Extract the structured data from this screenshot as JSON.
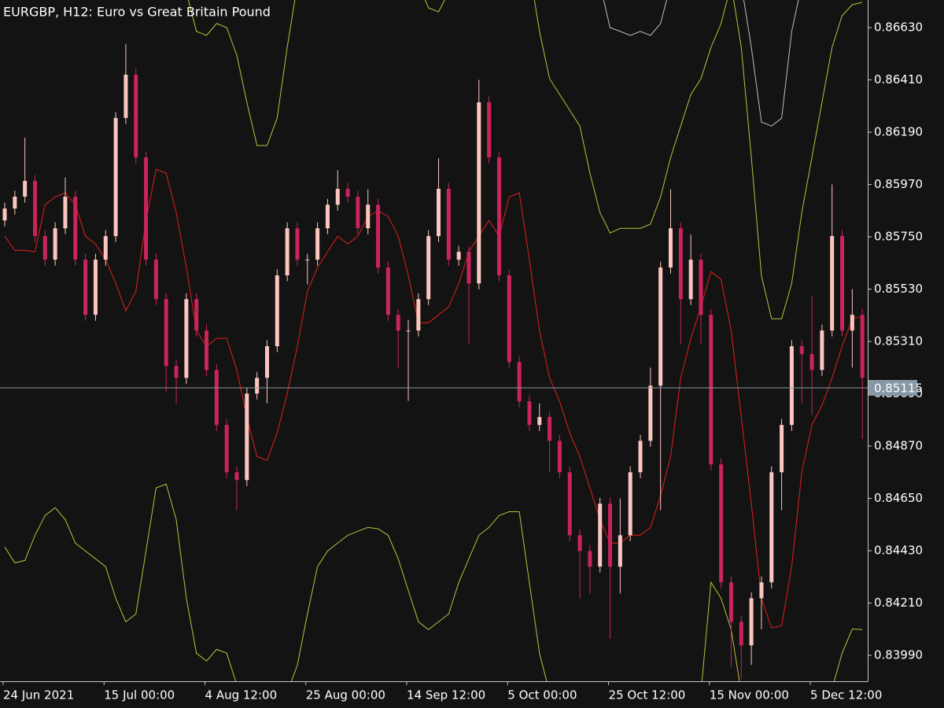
{
  "chart_data": {
    "type": "candlestick",
    "title": "EURGBP, H12:  Euro vs Great Britain Pound",
    "categories": [
      "24 Jun 2021",
      null,
      null,
      null,
      null,
      null,
      null,
      null,
      null,
      null,
      "15 Jul 00:00",
      null,
      null,
      null,
      null,
      null,
      null,
      null,
      null,
      null,
      "4 Aug 12:00",
      null,
      null,
      null,
      null,
      null,
      null,
      null,
      null,
      null,
      "25 Aug 00:00",
      null,
      null,
      null,
      null,
      null,
      null,
      null,
      null,
      null,
      "14 Sep 12:00",
      null,
      null,
      null,
      null,
      null,
      null,
      null,
      null,
      null,
      "5 Oct 00:00",
      null,
      null,
      null,
      null,
      null,
      null,
      null,
      null,
      null,
      "25 Oct 12:00",
      null,
      null,
      null,
      null,
      null,
      null,
      null,
      null,
      null,
      "15 Nov 00:00",
      null,
      null,
      null,
      null,
      null,
      null,
      null,
      null,
      null,
      "5 Dec 12:00",
      null,
      null,
      null,
      null,
      null
    ],
    "open": [
      0.85819,
      0.85869,
      0.85919,
      0.85985,
      0.85753,
      0.85654,
      0.85786,
      0.85919,
      0.85654,
      0.85422,
      0.85654,
      0.85753,
      0.8625,
      0.86432,
      0.86084,
      0.85654,
      0.85488,
      0.85207,
      0.85157,
      0.85488,
      0.85356,
      0.8519,
      0.84959,
      0.8476,
      0.84727,
      0.85091,
      0.85157,
      0.8529,
      0.85588,
      0.85786,
      0.85654,
      0.85654,
      0.85786,
      0.85885,
      0.85952,
      0.85919,
      0.85786,
      0.85885,
      0.85621,
      0.85422,
      0.85356,
      0.85356,
      0.85488,
      0.85753,
      0.85952,
      0.85654,
      0.85687,
      0.85554,
      0.86316,
      0.86084,
      0.85588,
      0.85223,
      0.85058,
      0.84959,
      0.84992,
      0.84892,
      0.8476,
      0.84495,
      0.84429,
      0.84363,
      0.84628,
      0.84363,
      0.84495,
      0.8476,
      0.84892,
      0.85124,
      0.85621,
      0.85786,
      0.85488,
      0.85654,
      0.85422,
      0.84793,
      0.84297,
      0.84131,
      0.84032,
      0.8423,
      0.84297,
      0.8476,
      0.84959,
      0.8529,
      0.85257,
      0.8519,
      0.85356,
      0.85753,
      0.85356,
      0.85422
    ],
    "high": [
      0.85894,
      0.85944,
      0.86167,
      0.8601,
      0.85778,
      0.85811,
      0.86,
      0.85944,
      0.85679,
      0.85679,
      0.85778,
      0.86275,
      0.8656,
      0.86457,
      0.86109,
      0.85679,
      0.85513,
      0.85232,
      0.85513,
      0.85513,
      0.85381,
      0.85215,
      0.84984,
      0.84785,
      0.85116,
      0.85182,
      0.85315,
      0.85613,
      0.85811,
      0.85811,
      0.85679,
      0.85811,
      0.8591,
      0.8603,
      0.85977,
      0.85944,
      0.8595,
      0.8591,
      0.85646,
      0.85447,
      0.854,
      0.85513,
      0.85778,
      0.8608,
      0.85977,
      0.85712,
      0.85712,
      0.8641,
      0.86341,
      0.86109,
      0.85613,
      0.85248,
      0.85083,
      0.8505,
      0.85017,
      0.84917,
      0.84785,
      0.8452,
      0.84454,
      0.84653,
      0.84653,
      0.8465,
      0.84785,
      0.84917,
      0.852,
      0.85646,
      0.8595,
      0.85811,
      0.8576,
      0.85679,
      0.85447,
      0.84818,
      0.84322,
      0.84156,
      0.84255,
      0.84322,
      0.84785,
      0.84984,
      0.85315,
      0.85315,
      0.855,
      0.85381,
      0.8597,
      0.85778,
      0.8553,
      0.85447
    ],
    "low": [
      0.85794,
      0.85844,
      0.85894,
      0.85728,
      0.85629,
      0.85629,
      0.85761,
      0.85629,
      0.85397,
      0.85397,
      0.85629,
      0.85728,
      0.86225,
      0.86059,
      0.85629,
      0.85463,
      0.851,
      0.8505,
      0.85132,
      0.85331,
      0.85165,
      0.84934,
      0.84735,
      0.846,
      0.84702,
      0.85066,
      0.8505,
      0.85265,
      0.85563,
      0.85629,
      0.8555,
      0.85629,
      0.85761,
      0.8586,
      0.85894,
      0.85761,
      0.85761,
      0.85596,
      0.85397,
      0.852,
      0.8506,
      0.85331,
      0.85463,
      0.85728,
      0.85629,
      0.85629,
      0.853,
      0.85529,
      0.86059,
      0.85563,
      0.85198,
      0.85033,
      0.84934,
      0.84934,
      0.8476,
      0.84735,
      0.8447,
      0.8423,
      0.8425,
      0.84338,
      0.8406,
      0.8425,
      0.8447,
      0.84735,
      0.84867,
      0.846,
      0.85596,
      0.853,
      0.85463,
      0.853,
      0.84768,
      0.84272,
      0.8394,
      0.8389,
      0.8395,
      0.841,
      0.84272,
      0.846,
      0.84934,
      0.8505,
      0.85,
      0.85165,
      0.85331,
      0.85331,
      0.852,
      0.849
    ],
    "close": [
      0.85869,
      0.85919,
      0.85985,
      0.85753,
      0.85654,
      0.85786,
      0.85919,
      0.85654,
      0.85422,
      0.85654,
      0.85753,
      0.8625,
      0.86432,
      0.86084,
      0.85654,
      0.85488,
      0.85207,
      0.85157,
      0.85488,
      0.85356,
      0.8519,
      0.84959,
      0.8476,
      0.84727,
      0.85091,
      0.85157,
      0.8529,
      0.85588,
      0.85786,
      0.85654,
      0.85654,
      0.85786,
      0.85885,
      0.85952,
      0.85919,
      0.85786,
      0.85885,
      0.85621,
      0.85422,
      0.85356,
      0.85356,
      0.85488,
      0.85753,
      0.85952,
      0.85654,
      0.85687,
      0.85554,
      0.86316,
      0.86084,
      0.85588,
      0.85223,
      0.85058,
      0.84959,
      0.84992,
      0.84892,
      0.8476,
      0.84495,
      0.84429,
      0.84363,
      0.84628,
      0.84363,
      0.84495,
      0.8476,
      0.84892,
      0.85124,
      0.85621,
      0.85786,
      0.85488,
      0.85654,
      0.85422,
      0.84793,
      0.84297,
      0.84131,
      0.84032,
      0.8423,
      0.84297,
      0.8476,
      0.84959,
      0.8529,
      0.85257,
      0.8519,
      0.85356,
      0.85753,
      0.85356,
      0.85422,
      0.85157
    ],
    "up_color": "#fcc6c0",
    "down_color": "#c9245c",
    "series": [
      {
        "color": "#e0201c",
        "values": [
          0.85753,
          0.85693,
          0.85693,
          0.85687,
          0.85885,
          0.85918,
          0.85935,
          0.85885,
          0.85753,
          0.8572,
          0.85654,
          0.85554,
          0.85439,
          0.85521,
          0.85819,
          0.86034,
          0.86018,
          0.85852,
          0.85621,
          0.85356,
          0.8529,
          0.85323,
          0.85323,
          0.8519,
          0.84992,
          0.84826,
          0.8481,
          0.84925,
          0.85091,
          0.8529,
          0.85521,
          0.85621,
          0.85687,
          0.85753,
          0.8572,
          0.85753,
          0.85836,
          0.85859,
          0.85836,
          0.85753,
          0.85587,
          0.85389,
          0.85389,
          0.85422,
          0.85455,
          0.85554,
          0.85687,
          0.85753,
          0.85819,
          0.85753,
          0.85918,
          0.85935,
          0.85654,
          0.85356,
          0.85157,
          0.85058,
          0.84925,
          0.84826,
          0.84694,
          0.84561,
          0.84462,
          0.84462,
          0.84495,
          0.84495,
          0.84528,
          0.84661,
          0.84826,
          0.85157,
          0.85323,
          0.85455,
          0.85604,
          0.85571,
          0.85356,
          0.84992,
          0.84628,
          0.8423,
          0.84105,
          0.84115,
          0.84363,
          0.8476,
          0.84959,
          0.85041,
          0.85157,
          0.8529,
          0.85405,
          0.85415
        ]
      },
      {
        "color": "#b5c43c",
        "values": [
          null,
          null,
          null,
          null,
          null,
          null,
          null,
          null,
          null,
          null,
          null,
          null,
          null,
          null,
          null,
          null,
          null,
          null,
          0.86779,
          0.86614,
          0.86597,
          0.86647,
          0.8663,
          0.86514,
          0.86316,
          0.86134,
          0.86134,
          0.86249,
          0.86547,
          0.86812,
          null,
          null,
          null,
          null,
          null,
          null,
          null,
          null,
          null,
          null,
          null,
          0.86812,
          0.86713,
          0.86696,
          0.86779,
          null,
          null,
          null,
          null,
          null,
          null,
          null,
          0.86878,
          0.86614,
          0.86415,
          0.86349,
          0.86283,
          0.86216,
          0.86018,
          0.85852,
          0.85766,
          0.85786,
          0.85786,
          0.85786,
          0.85803,
          0.85918,
          0.86084,
          0.86216,
          0.86349,
          0.86415,
          0.86547,
          0.86647,
          0.86812,
          0.86547,
          0.86084,
          0.85587,
          0.85405,
          0.85405,
          0.85554,
          0.85852,
          0.86084,
          0.86316,
          0.86547,
          0.8668,
          0.86726,
          0.86736
        ]
      },
      {
        "color": "#b5c43c",
        "values": [
          0.84446,
          0.84379,
          0.84389,
          0.84495,
          0.84578,
          0.84611,
          0.84561,
          0.84462,
          0.84429,
          0.84396,
          0.84363,
          0.8423,
          0.84131,
          0.84164,
          0.84429,
          0.84694,
          0.8471,
          0.84561,
          0.8423,
          0.83999,
          0.83966,
          0.84015,
          0.83999,
          0.83866,
          null,
          null,
          null,
          null,
          0.83833,
          0.83949,
          0.84164,
          0.84363,
          0.84429,
          0.84462,
          0.84495,
          0.84512,
          0.84528,
          0.84522,
          0.84495,
          0.84396,
          0.84263,
          0.84131,
          0.84098,
          0.84131,
          0.84164,
          0.84297,
          0.84396,
          0.84495,
          0.84528,
          0.84578,
          0.84594,
          0.84594,
          0.84297,
          0.83999,
          0.83833,
          null,
          null,
          null,
          null,
          null,
          null,
          null,
          null,
          null,
          null,
          null,
          null,
          null,
          null,
          0.83833,
          0.84297,
          0.8423,
          0.84098,
          0.83833,
          null,
          null,
          null,
          null,
          null,
          null,
          null,
          null,
          0.8385,
          0.83999,
          0.84101,
          0.84098
        ]
      },
      {
        "color": "#bdbdbd",
        "values": [
          null,
          null,
          null,
          null,
          null,
          null,
          null,
          null,
          null,
          null,
          null,
          null,
          null,
          null,
          null,
          null,
          null,
          null,
          null,
          null,
          null,
          null,
          null,
          null,
          null,
          null,
          null,
          null,
          null,
          null,
          null,
          null,
          null,
          null,
          null,
          null,
          null,
          null,
          null,
          null,
          null,
          null,
          null,
          null,
          null,
          null,
          null,
          null,
          null,
          null,
          null,
          null,
          null,
          null,
          null,
          null,
          null,
          null,
          null,
          0.86812,
          0.8663,
          0.86614,
          0.86597,
          0.86614,
          0.86597,
          0.86647,
          0.86812,
          null,
          null,
          null,
          null,
          null,
          null,
          0.86812,
          0.86547,
          0.86233,
          0.86216,
          0.86249,
          0.86614,
          0.86812,
          null,
          null,
          null,
          null,
          null,
          null
        ]
      }
    ],
    "current_price": {
      "value": 0.85115,
      "label": "0.85115"
    },
    "current_price_color": "#8897a5",
    "ylim": [
      0.83881,
      0.86746
    ],
    "yticks": [
      {
        "value": 0.8663,
        "label": "0.86630"
      },
      {
        "value": 0.8641,
        "label": "0.86410"
      },
      {
        "value": 0.8619,
        "label": "0.86190"
      },
      {
        "value": 0.8597,
        "label": "0.85970"
      },
      {
        "value": 0.8575,
        "label": "0.85750"
      },
      {
        "value": 0.8553,
        "label": "0.85530"
      },
      {
        "value": 0.8531,
        "label": "0.85310"
      },
      {
        "value": 0.8509,
        "label": "0.85090"
      },
      {
        "value": 0.8487,
        "label": "0.84870"
      },
      {
        "value": 0.8465,
        "label": "0.84650"
      },
      {
        "value": 0.8443,
        "label": "0.84430"
      },
      {
        "value": 0.8421,
        "label": "0.84210"
      },
      {
        "value": 0.8399,
        "label": "0.83990"
      }
    ],
    "grid": false
  }
}
